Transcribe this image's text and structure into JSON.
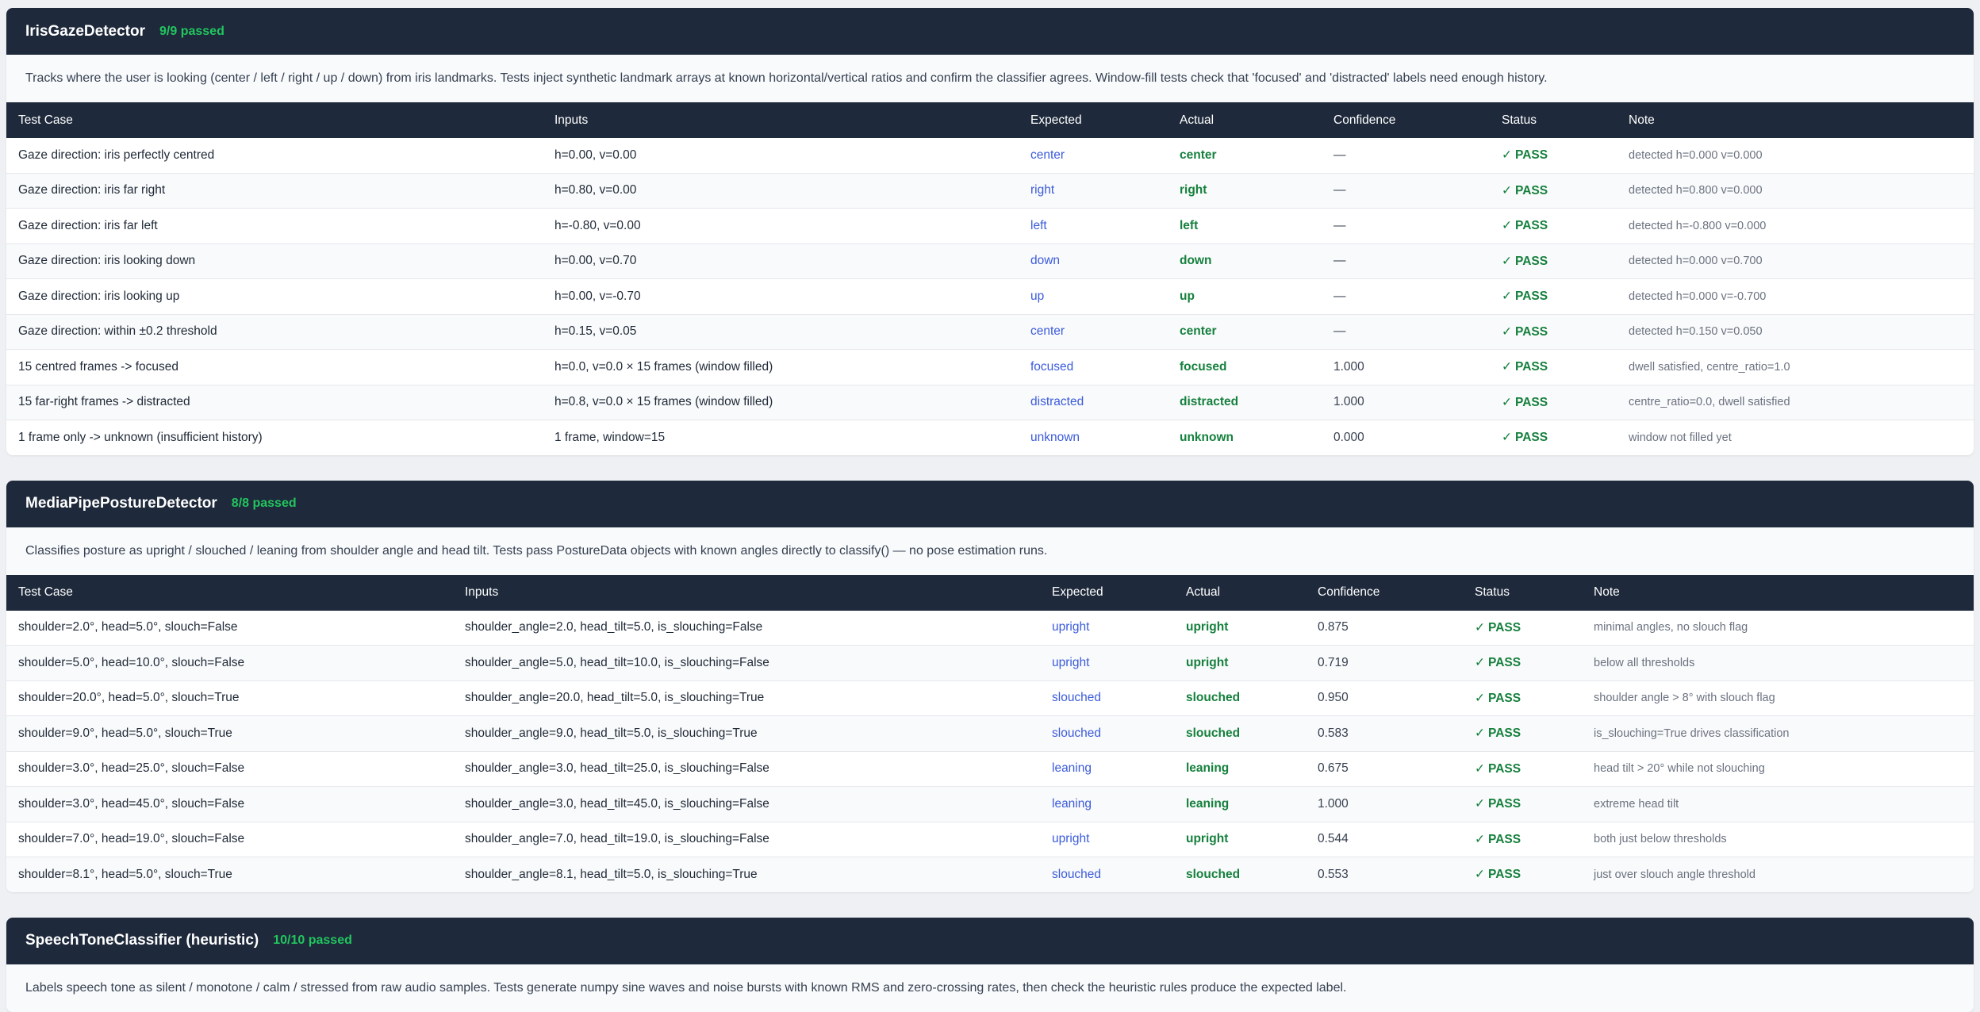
{
  "sections": [
    {
      "title": "IrisGazeDetector",
      "badge": "9/9 passed",
      "description": "Tracks where the user is looking (center / left / right / up / down) from iris landmarks. Tests inject synthetic landmark arrays at known horizontal/vertical ratios and confirm the classifier agrees. Window-fill tests check that 'focused' and 'distracted' labels need enough history.",
      "columns": [
        "Test Case",
        "Inputs",
        "Expected",
        "Actual",
        "Confidence",
        "Status",
        "Note"
      ],
      "rows": [
        {
          "case": "Gaze direction: iris perfectly centred",
          "inputs": "h=0.00, v=0.00",
          "expected": "center",
          "actual": "center",
          "confidence": "—",
          "status": "PASS",
          "note": "detected h=0.000 v=0.000"
        },
        {
          "case": "Gaze direction: iris far right",
          "inputs": "h=0.80, v=0.00",
          "expected": "right",
          "actual": "right",
          "confidence": "—",
          "status": "PASS",
          "note": "detected h=0.800 v=0.000"
        },
        {
          "case": "Gaze direction: iris far left",
          "inputs": "h=-0.80, v=0.00",
          "expected": "left",
          "actual": "left",
          "confidence": "—",
          "status": "PASS",
          "note": "detected h=-0.800 v=0.000"
        },
        {
          "case": "Gaze direction: iris looking down",
          "inputs": "h=0.00, v=0.70",
          "expected": "down",
          "actual": "down",
          "confidence": "—",
          "status": "PASS",
          "note": "detected h=0.000 v=0.700"
        },
        {
          "case": "Gaze direction: iris looking up",
          "inputs": "h=0.00, v=-0.70",
          "expected": "up",
          "actual": "up",
          "confidence": "—",
          "status": "PASS",
          "note": "detected h=0.000 v=-0.700"
        },
        {
          "case": "Gaze direction: within ±0.2 threshold",
          "inputs": "h=0.15, v=0.05",
          "expected": "center",
          "actual": "center",
          "confidence": "—",
          "status": "PASS",
          "note": "detected h=0.150 v=0.050"
        },
        {
          "case": "15 centred frames -> focused",
          "inputs": "h=0.0, v=0.0 × 15 frames (window filled)",
          "expected": "focused",
          "actual": "focused",
          "confidence": "1.000",
          "status": "PASS",
          "note": "dwell satisfied, centre_ratio=1.0"
        },
        {
          "case": "15 far-right frames -> distracted",
          "inputs": "h=0.8, v=0.0 × 15 frames (window filled)",
          "expected": "distracted",
          "actual": "distracted",
          "confidence": "1.000",
          "status": "PASS",
          "note": "centre_ratio=0.0, dwell satisfied"
        },
        {
          "case": "1 frame only -> unknown (insufficient history)",
          "inputs": "1 frame, window=15",
          "expected": "unknown",
          "actual": "unknown",
          "confidence": "0.000",
          "status": "PASS",
          "note": "window not filled yet"
        }
      ]
    },
    {
      "title": "MediaPipePostureDetector",
      "badge": "8/8 passed",
      "description": "Classifies posture as upright / slouched / leaning from shoulder angle and head tilt. Tests pass PostureData objects with known angles directly to classify() — no pose estimation runs.",
      "columns": [
        "Test Case",
        "Inputs",
        "Expected",
        "Actual",
        "Confidence",
        "Status",
        "Note"
      ],
      "rows": [
        {
          "case": "shoulder=2.0°, head=5.0°, slouch=False",
          "inputs": "shoulder_angle=2.0, head_tilt=5.0, is_slouching=False",
          "expected": "upright",
          "actual": "upright",
          "confidence": "0.875",
          "status": "PASS",
          "note": "minimal angles, no slouch flag"
        },
        {
          "case": "shoulder=5.0°, head=10.0°, slouch=False",
          "inputs": "shoulder_angle=5.0, head_tilt=10.0, is_slouching=False",
          "expected": "upright",
          "actual": "upright",
          "confidence": "0.719",
          "status": "PASS",
          "note": "below all thresholds"
        },
        {
          "case": "shoulder=20.0°, head=5.0°, slouch=True",
          "inputs": "shoulder_angle=20.0, head_tilt=5.0, is_slouching=True",
          "expected": "slouched",
          "actual": "slouched",
          "confidence": "0.950",
          "status": "PASS",
          "note": "shoulder angle > 8° with slouch flag"
        },
        {
          "case": "shoulder=9.0°, head=5.0°, slouch=True",
          "inputs": "shoulder_angle=9.0, head_tilt=5.0, is_slouching=True",
          "expected": "slouched",
          "actual": "slouched",
          "confidence": "0.583",
          "status": "PASS",
          "note": "is_slouching=True drives classification"
        },
        {
          "case": "shoulder=3.0°, head=25.0°, slouch=False",
          "inputs": "shoulder_angle=3.0, head_tilt=25.0, is_slouching=False",
          "expected": "leaning",
          "actual": "leaning",
          "confidence": "0.675",
          "status": "PASS",
          "note": "head tilt > 20° while not slouching"
        },
        {
          "case": "shoulder=3.0°, head=45.0°, slouch=False",
          "inputs": "shoulder_angle=3.0, head_tilt=45.0, is_slouching=False",
          "expected": "leaning",
          "actual": "leaning",
          "confidence": "1.000",
          "status": "PASS",
          "note": "extreme head tilt"
        },
        {
          "case": "shoulder=7.0°, head=19.0°, slouch=False",
          "inputs": "shoulder_angle=7.0, head_tilt=19.0, is_slouching=False",
          "expected": "upright",
          "actual": "upright",
          "confidence": "0.544",
          "status": "PASS",
          "note": "both just below thresholds"
        },
        {
          "case": "shoulder=8.1°, head=5.0°, slouch=True",
          "inputs": "shoulder_angle=8.1, head_tilt=5.0, is_slouching=True",
          "expected": "slouched",
          "actual": "slouched",
          "confidence": "0.553",
          "status": "PASS",
          "note": "just over slouch angle threshold"
        }
      ]
    },
    {
      "title": "SpeechToneClassifier (heuristic)",
      "badge": "10/10 passed",
      "description": "Labels speech tone as silent / monotone / calm / stressed from raw audio samples. Tests generate numpy sine waves and noise bursts with known RMS and zero-crossing rates, then check the heuristic rules produce the expected label.",
      "columns": [],
      "rows": []
    }
  ],
  "status_check_glyph": "✓",
  "colors": {
    "header_bg": "#1e293b",
    "badge": "#22c55e",
    "expected_text": "#3b5bdb",
    "pass_text": "#15803d"
  }
}
